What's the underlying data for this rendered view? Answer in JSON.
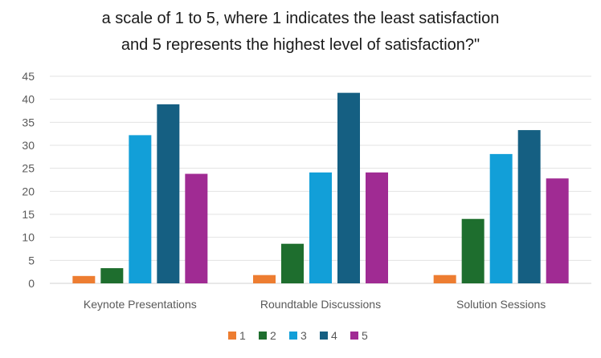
{
  "chart_data": {
    "type": "bar",
    "title_lines": [
      "a scale of 1 to 5, where 1 indicates the least satisfaction",
      "and 5 represents the highest level of satisfaction?\""
    ],
    "categories": [
      "Keynote Presentations",
      "Roundtable Discussions",
      "Solution Sessions"
    ],
    "series": [
      {
        "name": "1",
        "color": "#ED7D31",
        "values": [
          1.6,
          1.8,
          1.8
        ]
      },
      {
        "name": "2",
        "color": "#1E6E2E",
        "values": [
          3.3,
          8.6,
          14.0
        ]
      },
      {
        "name": "3",
        "color": "#129FD8",
        "values": [
          32.2,
          24.1,
          28.1
        ]
      },
      {
        "name": "4",
        "color": "#155F82",
        "values": [
          38.9,
          41.4,
          33.3
        ]
      },
      {
        "name": "5",
        "color": "#A02B93",
        "values": [
          23.8,
          24.1,
          22.8
        ]
      }
    ],
    "yticks": [
      "0",
      "5",
      "10",
      "15",
      "20",
      "25",
      "30",
      "35",
      "40",
      "45"
    ],
    "ylim": [
      0,
      45
    ],
    "grid": true,
    "legend_position": "bottom"
  }
}
